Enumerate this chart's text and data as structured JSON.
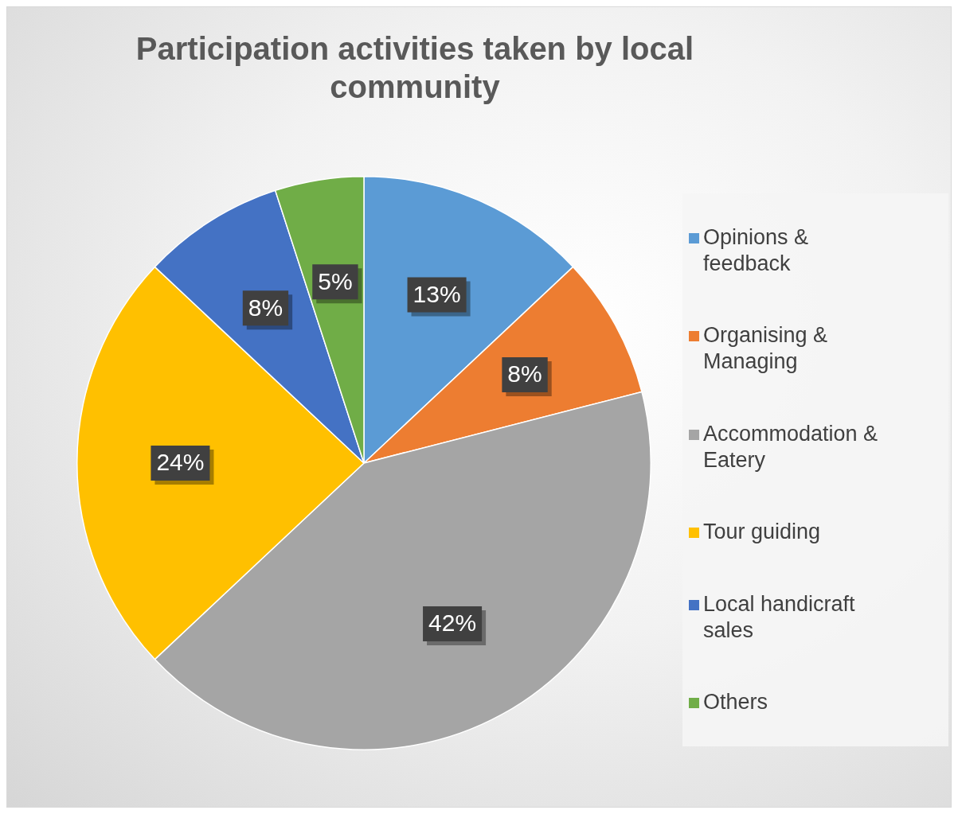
{
  "chart_data": {
    "type": "pie",
    "title": "Participation activities taken by local community",
    "categories": [
      "Opinions & feedback",
      "Organising & Managing",
      "Accommodation & Eatery",
      "Tour guiding",
      "Local handicraft sales",
      "Others"
    ],
    "values": [
      13,
      8,
      42,
      24,
      8,
      5
    ],
    "value_labels": [
      "13%",
      "8%",
      "42%",
      "24%",
      "8%",
      "5%"
    ],
    "colors": [
      "#5b9bd5",
      "#ed7d31",
      "#a5a5a5",
      "#ffc000",
      "#4472c4",
      "#70ad47"
    ],
    "legend": "right"
  }
}
